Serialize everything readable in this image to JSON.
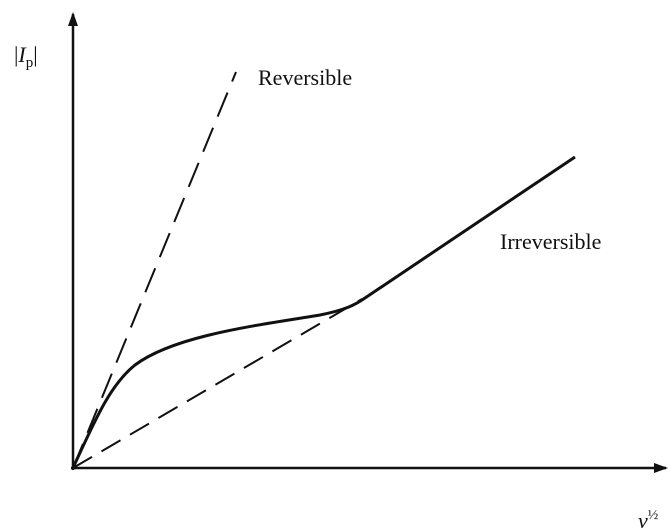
{
  "y_axis_label": {
    "open": "|",
    "symbol": "I",
    "subscript": "p",
    "close": "|"
  },
  "x_axis_label": {
    "symbol": "ν",
    "superscript": "½"
  },
  "curves": [
    {
      "label": "Reversible"
    },
    {
      "label": "Irreversible"
    }
  ]
}
